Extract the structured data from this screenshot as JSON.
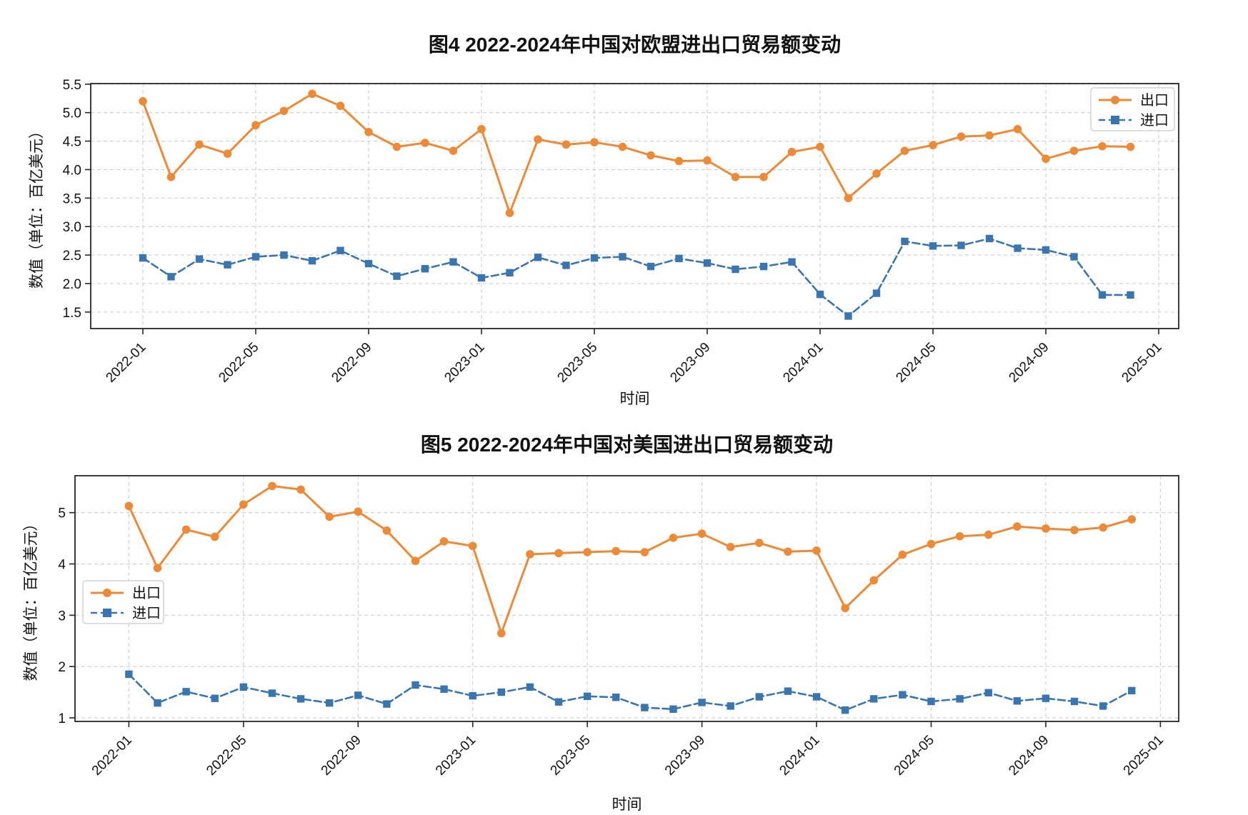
{
  "figure": {
    "background": "#ffffff"
  },
  "colors": {
    "export_series": "#ED8A38",
    "import_series": "#3B75AF",
    "grid_line": "#cdcdcd",
    "spine": "#262626",
    "text": "#111111",
    "legend_border": "#c9c9c9"
  },
  "chart_data": [
    {
      "type": "line",
      "title": "图4  2022-2024年中国对欧盟进出口贸易额变动",
      "xlabel": "时间",
      "ylabel": "数值（单位：百亿美元）",
      "grid": true,
      "legend": {
        "location": "upper-right",
        "entries": [
          "出口",
          "进口"
        ]
      },
      "x_months": [
        "2022-01",
        "2022-02",
        "2022-03",
        "2022-04",
        "2022-05",
        "2022-06",
        "2022-07",
        "2022-08",
        "2022-09",
        "2022-10",
        "2022-11",
        "2022-12",
        "2023-01",
        "2023-02",
        "2023-03",
        "2023-04",
        "2023-05",
        "2023-06",
        "2023-07",
        "2023-08",
        "2023-09",
        "2023-10",
        "2023-11",
        "2023-12",
        "2024-01",
        "2024-02",
        "2024-03",
        "2024-04",
        "2024-05",
        "2024-06",
        "2024-07",
        "2024-08",
        "2024-09",
        "2024-10",
        "2024-11",
        "2024-12"
      ],
      "x_tick_labels": [
        "2022-01",
        "2022-05",
        "2022-09",
        "2023-01",
        "2023-05",
        "2023-09",
        "2024-01",
        "2024-05",
        "2024-09",
        "2025-01"
      ],
      "x_tick_month_index": [
        0,
        4,
        8,
        12,
        16,
        20,
        24,
        28,
        32,
        36
      ],
      "y_tick_values": [
        5.5,
        5.0,
        4.5,
        4.0,
        3.5,
        3.0,
        2.5,
        2.0,
        1.5
      ],
      "y_tick_labels": [
        "5.5",
        "5.0",
        "4.5",
        "4.0",
        "3.5",
        "3.0",
        "2.5",
        "2.0",
        "1.5"
      ],
      "ylim": [
        1.21,
        5.51
      ],
      "series": [
        {
          "name": "出口",
          "color": "#ED8A38",
          "line": "solid",
          "marker": "circle",
          "values": [
            5.2,
            3.87,
            4.44,
            4.28,
            4.78,
            5.03,
            5.33,
            5.12,
            4.66,
            4.4,
            4.47,
            4.33,
            4.71,
            3.24,
            4.53,
            4.44,
            4.48,
            4.4,
            4.25,
            4.15,
            4.16,
            3.87,
            3.87,
            4.31,
            4.4,
            3.5,
            3.93,
            4.33,
            4.43,
            4.58,
            4.6,
            4.71,
            4.19,
            4.33,
            4.41,
            4.4
          ]
        },
        {
          "name": "进口",
          "color": "#3B75AF",
          "line": "dashed",
          "marker": "square",
          "values": [
            2.45,
            2.12,
            2.43,
            2.33,
            2.47,
            2.5,
            2.4,
            2.58,
            2.35,
            2.13,
            2.26,
            2.38,
            2.1,
            2.19,
            2.46,
            2.32,
            2.45,
            2.47,
            2.3,
            2.44,
            2.36,
            2.25,
            2.3,
            2.38,
            1.81,
            1.43,
            1.83,
            2.74,
            2.66,
            2.67,
            2.79,
            2.62,
            2.59,
            2.47,
            1.8,
            1.8
          ]
        }
      ]
    },
    {
      "type": "line",
      "title": "图5  2022-2024年中国对美国进出口贸易额变动",
      "xlabel": "时间",
      "ylabel": "数值（单位：百亿美元）",
      "grid": true,
      "legend": {
        "location": "center-left",
        "entries": [
          "出口",
          "进口"
        ]
      },
      "x_months": [
        "2022-01",
        "2022-02",
        "2022-03",
        "2022-04",
        "2022-05",
        "2022-06",
        "2022-07",
        "2022-08",
        "2022-09",
        "2022-10",
        "2022-11",
        "2022-12",
        "2023-01",
        "2023-02",
        "2023-03",
        "2023-04",
        "2023-05",
        "2023-06",
        "2023-07",
        "2023-08",
        "2023-09",
        "2023-10",
        "2023-11",
        "2023-12",
        "2024-01",
        "2024-02",
        "2024-03",
        "2024-04",
        "2024-05",
        "2024-06",
        "2024-07",
        "2024-08",
        "2024-09",
        "2024-10",
        "2024-11",
        "2024-12"
      ],
      "x_tick_labels": [
        "2022-01",
        "2022-05",
        "2022-09",
        "2023-01",
        "2023-05",
        "2023-09",
        "2024-01",
        "2024-05",
        "2024-09",
        "2025-01"
      ],
      "x_tick_month_index": [
        0,
        4,
        8,
        12,
        16,
        20,
        24,
        28,
        32,
        36
      ],
      "y_tick_values": [
        5,
        4,
        3,
        2,
        1
      ],
      "y_tick_labels": [
        "5",
        "4",
        "3",
        "2",
        "1"
      ],
      "ylim": [
        0.93,
        5.72
      ],
      "series": [
        {
          "name": "出口",
          "color": "#ED8A38",
          "line": "solid",
          "marker": "circle",
          "values": [
            5.13,
            3.92,
            4.67,
            4.53,
            5.16,
            5.52,
            5.45,
            4.92,
            5.02,
            4.65,
            4.06,
            4.44,
            4.35,
            2.65,
            4.19,
            4.21,
            4.23,
            4.25,
            4.23,
            4.51,
            4.59,
            4.33,
            4.41,
            4.24,
            4.26,
            3.14,
            3.68,
            4.18,
            4.39,
            4.54,
            4.57,
            4.73,
            4.69,
            4.66,
            4.71,
            4.87
          ]
        },
        {
          "name": "进口",
          "color": "#3B75AF",
          "line": "dashed",
          "marker": "square",
          "values": [
            1.85,
            1.29,
            1.51,
            1.38,
            1.6,
            1.48,
            1.37,
            1.29,
            1.44,
            1.27,
            1.64,
            1.56,
            1.43,
            1.5,
            1.6,
            1.31,
            1.42,
            1.4,
            1.2,
            1.17,
            1.3,
            1.23,
            1.41,
            1.52,
            1.41,
            1.15,
            1.37,
            1.45,
            1.32,
            1.37,
            1.49,
            1.33,
            1.38,
            1.32,
            1.23,
            1.53
          ]
        }
      ]
    }
  ]
}
